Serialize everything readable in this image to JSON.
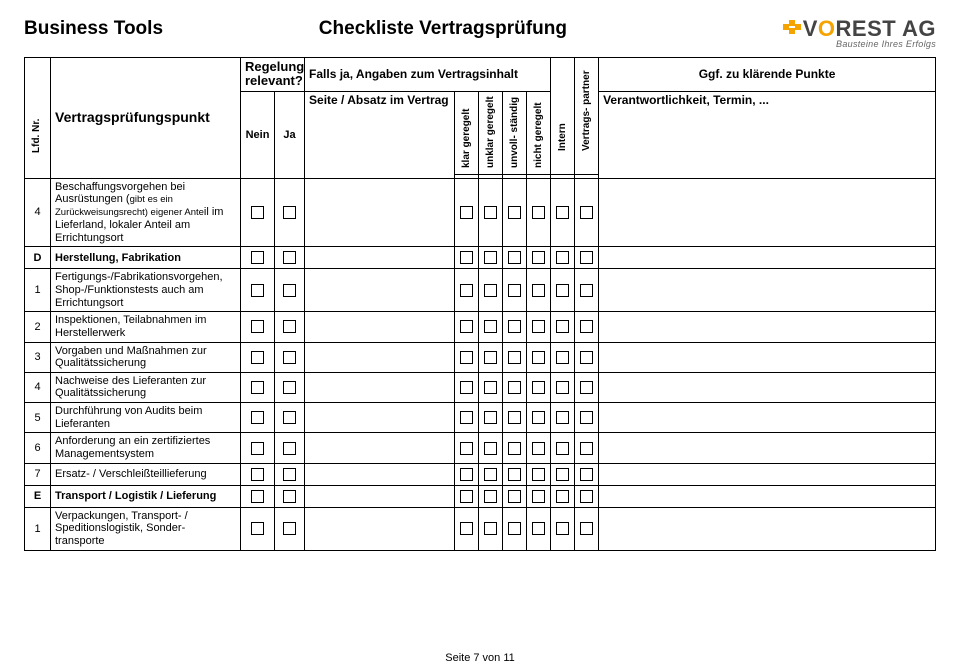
{
  "header": {
    "left": "Business Tools",
    "middle": "Checkliste Vertragsprüfung",
    "logo_main": "VOREST AG",
    "logo_sub": "Bausteine Ihres Erfolgs"
  },
  "thead": {
    "lfdnr": "Lfd. Nr.",
    "punkt": "Vertragsprüfungspunkt",
    "regelung": "Regelung relevant?",
    "nein": "Nein",
    "ja": "Ja",
    "falls": "Falls ja, Angaben zum Vertragsinhalt",
    "seite": "Seite / Absatz im Vertrag",
    "v1": "klar geregelt",
    "v2": "unklar geregelt",
    "v3": "unvoll- ständig",
    "v4": "nicht geregelt",
    "v5": "Intern",
    "v6": "Vertrags- partner",
    "ggf": "Ggf. zu klärende Punkte",
    "resp": "Verantwortlichkeit, Termin, ..."
  },
  "rows": [
    {
      "nr": "4",
      "text": "Beschaffungsvorgehen bei Ausrüstungen (gibt es ein Zurückweisungsrecht) eigener Anteil im Lieferland, lokaler Anteil am Errichtungsort",
      "smallStart": 39,
      "smallEnd": 84,
      "bold": false
    },
    {
      "nr": "D",
      "text": "Herstellung, Fabrikation",
      "bold": true
    },
    {
      "nr": "1",
      "text": "Fertigungs-/Fabrikationsvorgehen, Shop-/Funktionstests auch am Errichtungsort",
      "bold": false
    },
    {
      "nr": "2",
      "text": "Inspektionen, Teilabnahmen im Herstellerwerk",
      "bold": false
    },
    {
      "nr": "3",
      "text": "Vorgaben und Maßnahmen zur Qualitätssicherung",
      "bold": false
    },
    {
      "nr": "4",
      "text": "Nachweise des Lieferanten zur Qualitätssicherung",
      "bold": false
    },
    {
      "nr": "5",
      "text": "Durchführung von Audits beim Lieferanten",
      "bold": false
    },
    {
      "nr": "6",
      "text": "Anforderung an ein zertifiziertes Managementsystem",
      "bold": false
    },
    {
      "nr": "7",
      "text": "Ersatz- / Verschleißteillieferung",
      "bold": false
    },
    {
      "nr": "E",
      "text": "Transport / Logistik / Lieferung",
      "bold": true
    },
    {
      "nr": "1",
      "text": "Verpackungen, Transport- / Speditionslogistik, Sonder- transporte",
      "bold": false
    }
  ],
  "footer": "Seite 7 von 11"
}
